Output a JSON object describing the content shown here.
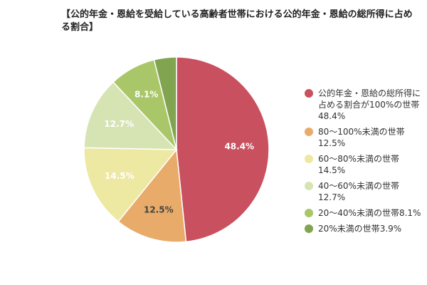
{
  "chart_data": {
    "type": "pie",
    "title": "【公的年金・恩給を受給している高齢者世帯における公的年金・恩給の総所得に占める割合】",
    "legend_position": "right",
    "slices": [
      {
        "label": "公的年金・恩給の総所得に占める割合が100%の世帯",
        "legend_value": "48.4%",
        "value": 48.4,
        "data_label": "48.4%",
        "color": "#c9505f",
        "label_color": "#ffffff"
      },
      {
        "label": "80～100%未満の世帯",
        "legend_value": "12.5%",
        "value": 12.5,
        "data_label": "12.5%",
        "color": "#e8ab6a",
        "label_color": "#444444"
      },
      {
        "label": "60～80%未満の世帯",
        "legend_value": "14.5%",
        "value": 14.5,
        "data_label": "14.5%",
        "color": "#ede8a2",
        "label_color": "#ffffff"
      },
      {
        "label": "40～60%未満の世帯",
        "legend_value": "12.7%",
        "value": 12.7,
        "data_label": "12.7%",
        "color": "#d6e4b4",
        "label_color": "#ffffff"
      },
      {
        "label": "20～40%未満の世帯",
        "legend_value": "8.1%",
        "value": 8.1,
        "data_label": "8.1%",
        "color": "#a9c768",
        "label_color": "#ffffff"
      },
      {
        "label": "20%未満の世帯",
        "legend_value": "3.9%",
        "value": 3.9,
        "data_label": "",
        "color": "#80a44f",
        "label_color": "#ffffff"
      }
    ]
  }
}
